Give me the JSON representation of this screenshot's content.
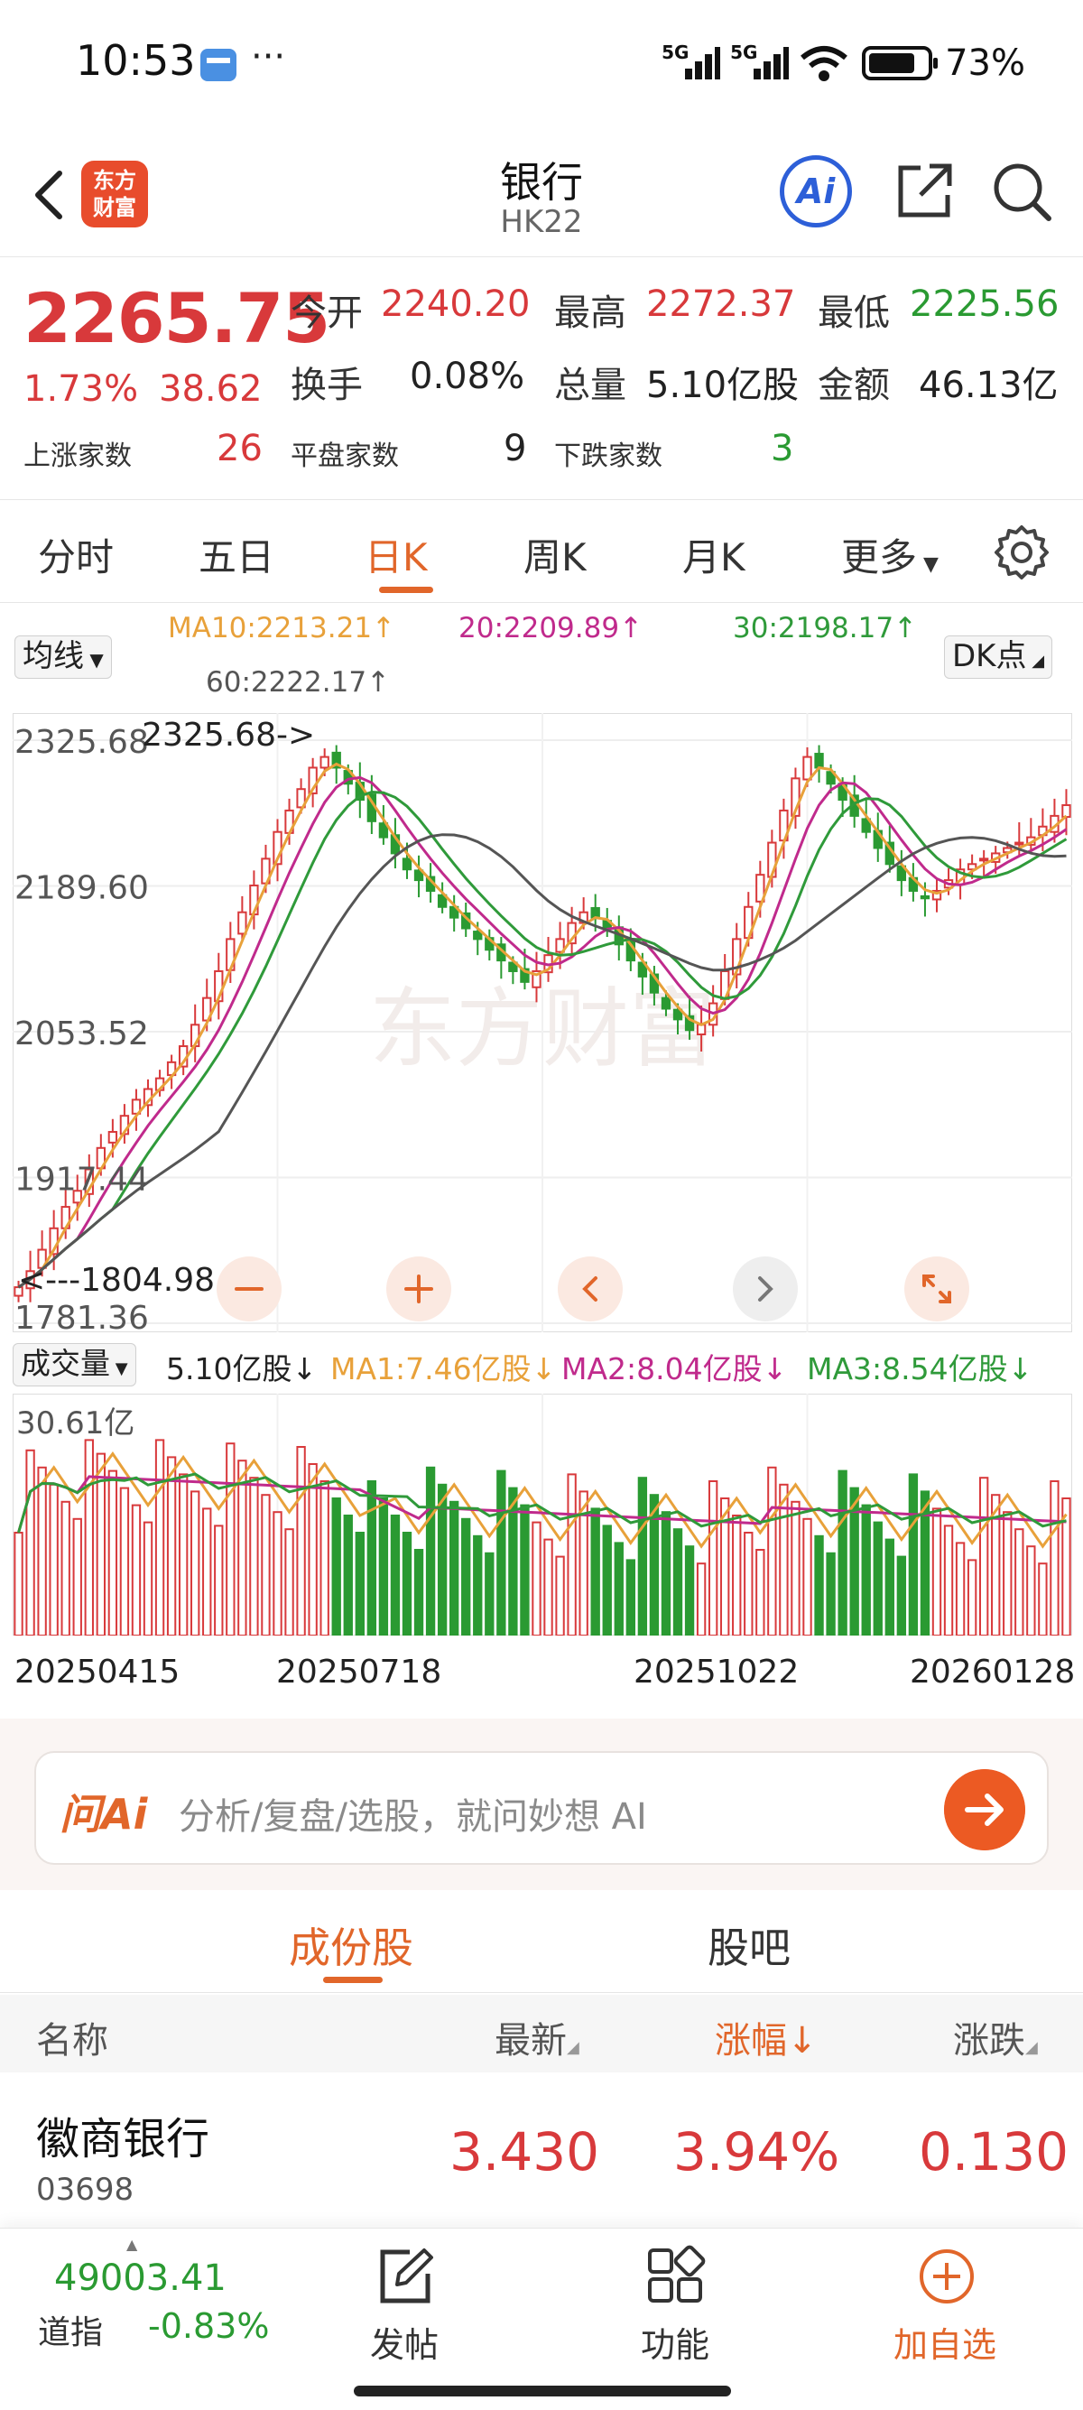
{
  "status": {
    "time": "10:53",
    "dots": "···",
    "signal1": "5G",
    "signal2": "5G",
    "battery": "73%"
  },
  "header": {
    "logo_line1": "东方",
    "logo_line2": "财富",
    "title": "银行",
    "subtitle": "HK22",
    "ai_label": "Ai"
  },
  "quote": {
    "price": "2265.75",
    "change_pct": "1.73%",
    "change": "38.62",
    "open_label": "今开",
    "open": "2240.20",
    "high_label": "最高",
    "high": "2272.37",
    "low_label": "最低",
    "low": "2225.56",
    "turnover_label": "换手",
    "turnover": "0.08%",
    "volume_label": "总量",
    "volume": "5.10亿股",
    "amount_label": "金额",
    "amount": "46.13亿",
    "up_label": "上涨家数",
    "up": "26",
    "flat_label": "平盘家数",
    "flat": "9",
    "down_label": "下跌家数",
    "down": "3"
  },
  "chart_tabs": [
    "分时",
    "五日",
    "日K",
    "周K",
    "月K",
    "更多"
  ],
  "ma": {
    "selector": "均线",
    "ma10": "MA10:2213.21↑",
    "ma20": "20:2209.89↑",
    "ma30": "30:2198.17↑",
    "ma60": "60:2222.17↑",
    "dk": "DK点"
  },
  "chart_data": {
    "type": "candlestick",
    "y_ticks": [
      "2325.68",
      "2189.60",
      "2053.52",
      "1917.44",
      "1781.36"
    ],
    "ylim": [
      1781.36,
      2325.68
    ],
    "high_note": "2325.68->",
    "low_note": "<---1804.98",
    "watermark": "东方财富",
    "x_labels": [
      "20250415",
      "20250718",
      "20251022",
      "20260128"
    ],
    "close_series": [
      1815,
      1830,
      1850,
      1870,
      1890,
      1905,
      1925,
      1945,
      1960,
      1975,
      1990,
      2000,
      2010,
      2025,
      2040,
      2060,
      2085,
      2110,
      2140,
      2165,
      2190,
      2215,
      2240,
      2260,
      2280,
      2300,
      2310,
      2300,
      2285,
      2270,
      2250,
      2235,
      2220,
      2205,
      2195,
      2185,
      2170,
      2160,
      2150,
      2140,
      2130,
      2120,
      2110,
      2100,
      2110,
      2125,
      2140,
      2155,
      2165,
      2160,
      2150,
      2135,
      2120,
      2105,
      2090,
      2075,
      2065,
      2055,
      2060,
      2080,
      2110,
      2140,
      2170,
      2200,
      2230,
      2260,
      2290,
      2310,
      2300,
      2285,
      2270,
      2255,
      2240,
      2225,
      2210,
      2195,
      2185,
      2178,
      2185,
      2195,
      2205,
      2210,
      2215,
      2220,
      2225,
      2230,
      2235,
      2245,
      2255,
      2265
    ],
    "volume": {
      "title": "成交量",
      "current": "5.10亿股↓",
      "ma1": "MA1:7.46亿股↓",
      "ma2": "MA2:8.04亿股↓",
      "ma3": "MA3:8.54亿股↓",
      "y_max_label": "30.61亿"
    },
    "colors": {
      "up": "#d8393b",
      "down": "#2a9a32",
      "ma10": "#e8a13a",
      "ma20": "#c02a8c",
      "ma30": "#2f9a3a",
      "ma60": "#555555"
    }
  },
  "ai_input": {
    "logo": "问Ai",
    "placeholder": "分析/复盘/选股，就问妙想 AI"
  },
  "sub_tabs": [
    "成份股",
    "股吧"
  ],
  "table": {
    "headers": [
      "名称",
      "最新",
      "涨幅↓",
      "涨跌"
    ],
    "rows": [
      {
        "name": "徽商银行",
        "code": "03698",
        "last": "3.430",
        "pct": "3.94%",
        "chg": "0.130"
      }
    ]
  },
  "bottom": {
    "index_value": "49003.41",
    "index_name": "道指",
    "index_change": "-0.83%",
    "nav": [
      "发帖",
      "功能",
      "加自选"
    ]
  }
}
